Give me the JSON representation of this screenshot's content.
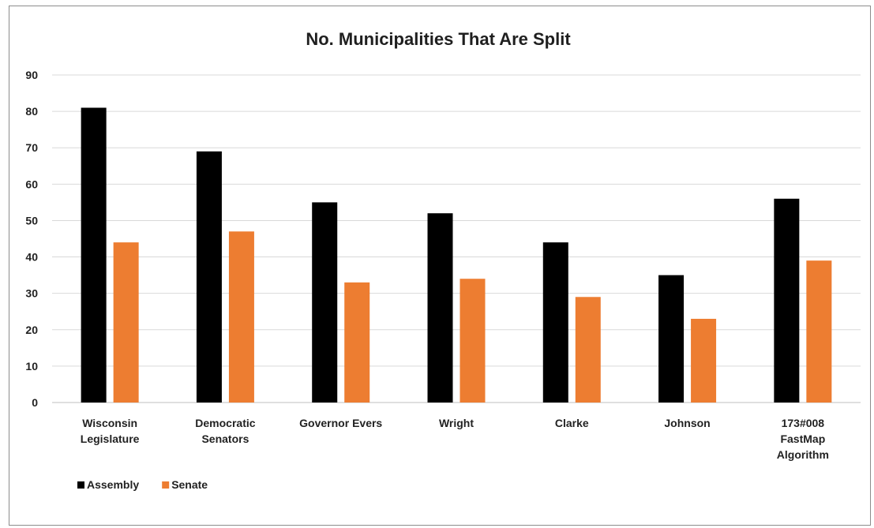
{
  "chart_data": {
    "type": "bar",
    "title": "No. Municipalities That Are Split",
    "xlabel": "",
    "ylabel": "",
    "ylim": [
      0,
      90
    ],
    "yticks": [
      0,
      10,
      20,
      30,
      40,
      50,
      60,
      70,
      80,
      90
    ],
    "grid": true,
    "legend_position": "bottom-left",
    "categories": [
      [
        "Wisconsin",
        "Legislature"
      ],
      [
        "Democratic",
        "Senators"
      ],
      [
        "Governor Evers"
      ],
      [
        "Wright"
      ],
      [
        "Clarke"
      ],
      [
        "Johnson"
      ],
      [
        "173#008",
        "FastMap",
        "Algorithm"
      ]
    ],
    "series": [
      {
        "name": "Assembly",
        "color": "#000000",
        "values": [
          81,
          69,
          55,
          52,
          44,
          35,
          56
        ]
      },
      {
        "name": "Senate",
        "color": "#ed7d31",
        "values": [
          44,
          47,
          33,
          34,
          29,
          23,
          39
        ]
      }
    ]
  }
}
